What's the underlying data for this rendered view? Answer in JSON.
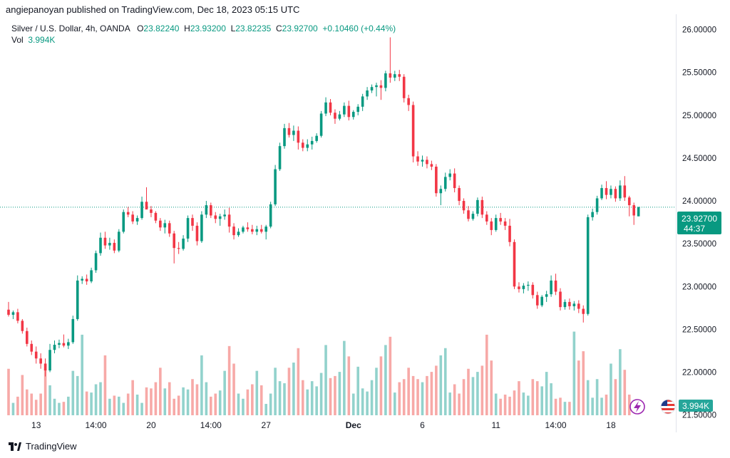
{
  "header": {
    "publish_line": "angiepanoyan published on TradingView.com, Dec 18, 2023 05:15 UTC"
  },
  "legend": {
    "symbol": "Silver / U.S. Dollar, 4h, OANDA",
    "open_label": "O",
    "open": "23.82240",
    "high_label": "H",
    "high": "23.93200",
    "low_label": "L",
    "low": "23.82235",
    "close_label": "C",
    "close": "23.92700",
    "change": "+0.10460 (+0.44%)",
    "vol_label": "Vol",
    "vol": "3.994K"
  },
  "price_tag": {
    "price": "23.92700",
    "countdown": "44:37"
  },
  "volume_tag": "3.994K",
  "footer": {
    "brand": "TradingView"
  },
  "colors": {
    "up": "#089981",
    "down": "#f23645",
    "up_vol": "#92d2cc",
    "down_vol": "#f7a9a7",
    "price_line": "#089981"
  },
  "chart_data": {
    "type": "candlestick",
    "y_ticks": [
      "26.00000",
      "25.50000",
      "25.00000",
      "24.50000",
      "24.00000",
      "23.50000",
      "23.00000",
      "22.50000",
      "22.00000",
      "21.50000"
    ],
    "ylim": [
      21.48,
      26.18
    ],
    "x_ticks": [
      {
        "label": "13",
        "i": 6,
        "bold": false
      },
      {
        "label": "14:00",
        "i": 19,
        "bold": false
      },
      {
        "label": "20",
        "i": 31,
        "bold": false
      },
      {
        "label": "14:00",
        "i": 44,
        "bold": false
      },
      {
        "label": "27",
        "i": 56,
        "bold": false
      },
      {
        "label": "Dec",
        "i": 75,
        "bold": true
      },
      {
        "label": "6",
        "i": 90,
        "bold": false
      },
      {
        "label": "11",
        "i": 106,
        "bold": false
      },
      {
        "label": "14:00",
        "i": 119,
        "bold": false
      },
      {
        "label": "18",
        "i": 131,
        "bold": false
      }
    ],
    "last_price": 23.927,
    "candles": [
      [
        22.73,
        22.82,
        22.65,
        22.67
      ],
      [
        22.67,
        22.72,
        22.62,
        22.7
      ],
      [
        22.7,
        22.74,
        22.57,
        22.6
      ],
      [
        22.6,
        22.62,
        22.45,
        22.48
      ],
      [
        22.48,
        22.52,
        22.3,
        22.33
      ],
      [
        22.33,
        22.37,
        22.2,
        22.24
      ],
      [
        22.24,
        22.3,
        22.1,
        22.16
      ],
      [
        22.16,
        22.22,
        22.04,
        22.1
      ],
      [
        22.1,
        22.16,
        21.95,
        22.02
      ],
      [
        22.02,
        22.33,
        22.0,
        22.26
      ],
      [
        22.26,
        22.37,
        22.22,
        22.32
      ],
      [
        22.32,
        22.38,
        22.28,
        22.34
      ],
      [
        22.34,
        22.44,
        22.29,
        22.31
      ],
      [
        22.31,
        22.39,
        22.27,
        22.35
      ],
      [
        22.35,
        22.66,
        22.33,
        22.62
      ],
      [
        22.62,
        23.13,
        22.6,
        23.07
      ],
      [
        23.07,
        23.12,
        23.03,
        23.09
      ],
      [
        23.09,
        23.14,
        23.02,
        23.06
      ],
      [
        23.06,
        23.22,
        23.04,
        23.19
      ],
      [
        23.19,
        23.42,
        23.16,
        23.39
      ],
      [
        23.39,
        23.63,
        23.36,
        23.57
      ],
      [
        23.57,
        23.64,
        23.44,
        23.48
      ],
      [
        23.48,
        23.57,
        23.43,
        23.51
      ],
      [
        23.51,
        23.55,
        23.39,
        23.42
      ],
      [
        23.42,
        23.67,
        23.4,
        23.64
      ],
      [
        23.64,
        23.9,
        23.62,
        23.87
      ],
      [
        23.87,
        23.93,
        23.81,
        23.84
      ],
      [
        23.84,
        23.88,
        23.73,
        23.76
      ],
      [
        23.76,
        23.83,
        23.72,
        23.8
      ],
      [
        23.8,
        24.05,
        23.78,
        23.99
      ],
      [
        23.99,
        24.16,
        23.92,
        23.9
      ],
      [
        23.9,
        23.94,
        23.81,
        23.86
      ],
      [
        23.86,
        23.88,
        23.74,
        23.77
      ],
      [
        23.77,
        23.8,
        23.65,
        23.69
      ],
      [
        23.69,
        23.78,
        23.62,
        23.74
      ],
      [
        23.74,
        23.77,
        23.58,
        23.62
      ],
      [
        23.62,
        23.65,
        23.27,
        23.45
      ],
      [
        23.45,
        23.52,
        23.38,
        23.44
      ],
      [
        23.44,
        23.6,
        23.42,
        23.56
      ],
      [
        23.56,
        23.83,
        23.52,
        23.8
      ],
      [
        23.8,
        23.84,
        23.65,
        23.71
      ],
      [
        23.71,
        23.75,
        23.48,
        23.53
      ],
      [
        23.53,
        23.88,
        23.51,
        23.84
      ],
      [
        23.84,
        24.0,
        23.8,
        23.95
      ],
      [
        23.95,
        23.98,
        23.8,
        23.83
      ],
      [
        23.83,
        23.87,
        23.74,
        23.79
      ],
      [
        23.79,
        23.85,
        23.71,
        23.82
      ],
      [
        23.82,
        23.9,
        23.78,
        23.84
      ],
      [
        23.84,
        23.92,
        23.63,
        23.7
      ],
      [
        23.7,
        23.74,
        23.55,
        23.6
      ],
      [
        23.6,
        23.68,
        23.58,
        23.64
      ],
      [
        23.64,
        23.71,
        23.62,
        23.69
      ],
      [
        23.69,
        23.75,
        23.64,
        23.67
      ],
      [
        23.67,
        23.72,
        23.61,
        23.64
      ],
      [
        23.64,
        23.71,
        23.6,
        23.67
      ],
      [
        23.67,
        23.72,
        23.62,
        23.64
      ],
      [
        23.64,
        23.72,
        23.55,
        23.7
      ],
      [
        23.7,
        23.99,
        23.68,
        23.96
      ],
      [
        23.96,
        24.42,
        23.94,
        24.37
      ],
      [
        24.37,
        24.68,
        24.35,
        24.64
      ],
      [
        24.64,
        24.9,
        24.61,
        24.85
      ],
      [
        24.85,
        24.91,
        24.74,
        24.77
      ],
      [
        24.77,
        24.88,
        24.7,
        24.82
      ],
      [
        24.82,
        24.87,
        24.6,
        24.68
      ],
      [
        24.68,
        24.72,
        24.58,
        24.62
      ],
      [
        24.62,
        24.72,
        24.58,
        24.66
      ],
      [
        24.66,
        24.75,
        24.6,
        24.7
      ],
      [
        24.7,
        24.79,
        24.68,
        24.76
      ],
      [
        24.76,
        25.05,
        24.74,
        25.02
      ],
      [
        25.02,
        25.21,
        24.99,
        25.15
      ],
      [
        25.15,
        25.19,
        25.0,
        25.03
      ],
      [
        25.03,
        25.07,
        24.9,
        24.96
      ],
      [
        24.96,
        25.05,
        24.94,
        25.01
      ],
      [
        25.01,
        25.15,
        24.98,
        25.11
      ],
      [
        25.11,
        25.17,
        24.94,
        24.98
      ],
      [
        24.98,
        25.06,
        24.95,
        25.04
      ],
      [
        25.04,
        25.13,
        25.0,
        25.1
      ],
      [
        25.1,
        25.25,
        25.05,
        25.22
      ],
      [
        25.22,
        25.33,
        25.18,
        25.29
      ],
      [
        25.29,
        25.36,
        25.26,
        25.33
      ],
      [
        25.33,
        25.38,
        25.22,
        25.35
      ],
      [
        25.35,
        25.41,
        25.18,
        25.32
      ],
      [
        25.32,
        25.52,
        25.28,
        25.49
      ],
      [
        25.49,
        25.91,
        25.38,
        25.44
      ],
      [
        25.44,
        25.52,
        25.4,
        25.48
      ],
      [
        25.48,
        25.53,
        25.4,
        25.45
      ],
      [
        25.45,
        25.48,
        25.15,
        25.2
      ],
      [
        25.2,
        25.24,
        25.05,
        25.12
      ],
      [
        25.12,
        25.16,
        24.45,
        24.52
      ],
      [
        24.52,
        24.58,
        24.41,
        24.46
      ],
      [
        24.46,
        24.53,
        24.4,
        24.48
      ],
      [
        24.48,
        24.52,
        24.38,
        24.43
      ],
      [
        24.43,
        24.47,
        24.36,
        24.4
      ],
      [
        24.4,
        24.43,
        24.05,
        24.09
      ],
      [
        24.09,
        24.18,
        23.95,
        24.14
      ],
      [
        24.14,
        24.33,
        24.11,
        24.28
      ],
      [
        24.28,
        24.37,
        24.24,
        24.32
      ],
      [
        24.32,
        24.38,
        24.1,
        24.15
      ],
      [
        24.15,
        24.18,
        23.95,
        24.0
      ],
      [
        24.0,
        24.03,
        23.85,
        23.89
      ],
      [
        23.89,
        23.94,
        23.76,
        23.79
      ],
      [
        23.79,
        23.88,
        23.77,
        23.85
      ],
      [
        23.85,
        24.04,
        23.82,
        24.01
      ],
      [
        24.01,
        24.05,
        23.8,
        23.84
      ],
      [
        23.84,
        23.88,
        23.72,
        23.76
      ],
      [
        23.76,
        23.8,
        23.6,
        23.66
      ],
      [
        23.66,
        23.84,
        23.64,
        23.8
      ],
      [
        23.8,
        23.86,
        23.72,
        23.76
      ],
      [
        23.76,
        23.8,
        23.66,
        23.71
      ],
      [
        23.71,
        23.79,
        23.47,
        23.52
      ],
      [
        23.52,
        23.55,
        22.97,
        23.0
      ],
      [
        23.0,
        23.05,
        22.93,
        22.97
      ],
      [
        22.97,
        23.04,
        22.92,
        23.01
      ],
      [
        23.01,
        23.06,
        22.95,
        23.02
      ],
      [
        23.02,
        23.05,
        22.86,
        22.9
      ],
      [
        22.9,
        22.94,
        22.74,
        22.78
      ],
      [
        22.78,
        22.9,
        22.76,
        22.88
      ],
      [
        22.88,
        22.95,
        22.82,
        22.91
      ],
      [
        22.91,
        23.13,
        22.88,
        23.07
      ],
      [
        23.07,
        23.15,
        22.9,
        22.94
      ],
      [
        22.94,
        22.98,
        22.72,
        22.76
      ],
      [
        22.76,
        22.85,
        22.73,
        22.82
      ],
      [
        22.82,
        22.86,
        22.73,
        22.77
      ],
      [
        22.77,
        22.83,
        22.72,
        22.8
      ],
      [
        22.8,
        22.84,
        22.69,
        22.74
      ],
      [
        22.74,
        22.78,
        22.58,
        22.68
      ],
      [
        22.68,
        23.84,
        22.66,
        23.81
      ],
      [
        23.81,
        23.91,
        23.77,
        23.87
      ],
      [
        23.87,
        24.06,
        23.84,
        24.03
      ],
      [
        24.03,
        24.19,
        24.01,
        24.15
      ],
      [
        24.15,
        24.23,
        24.02,
        24.07
      ],
      [
        24.07,
        24.18,
        24.03,
        24.14
      ],
      [
        24.14,
        24.17,
        23.99,
        24.03
      ],
      [
        24.03,
        24.24,
        24.0,
        24.18
      ],
      [
        24.18,
        24.29,
        24.0,
        24.04
      ],
      [
        24.04,
        24.06,
        23.82,
        23.95
      ],
      [
        23.95,
        23.98,
        23.72,
        23.83
      ],
      [
        23.82,
        23.93,
        23.82,
        23.93
      ]
    ],
    "volume": [
      0.45,
      0.12,
      0.18,
      0.39,
      0.25,
      0.21,
      0.15,
      0.21,
      0.45,
      0.29,
      0.16,
      0.12,
      0.13,
      0.18,
      0.43,
      0.38,
      0.78,
      0.23,
      0.22,
      0.3,
      0.32,
      0.58,
      0.16,
      0.19,
      0.18,
      0.12,
      0.21,
      0.34,
      0.2,
      0.12,
      0.27,
      0.26,
      0.32,
      0.46,
      0.26,
      0.32,
      0.16,
      0.19,
      0.27,
      0.25,
      0.35,
      0.3,
      0.58,
      0.32,
      0.18,
      0.21,
      0.24,
      0.43,
      0.67,
      0.5,
      0.21,
      0.16,
      0.25,
      0.3,
      0.43,
      0.29,
      0.11,
      0.21,
      0.46,
      0.33,
      0.31,
      0.46,
      0.51,
      0.65,
      0.34,
      0.25,
      0.33,
      0.28,
      0.41,
      0.68,
      0.36,
      0.38,
      0.42,
      0.72,
      0.57,
      0.21,
      0.47,
      0.26,
      0.23,
      0.34,
      0.46,
      0.57,
      0.68,
      0.76,
      0.22,
      0.32,
      0.35,
      0.46,
      0.38,
      0.35,
      0.32,
      0.38,
      0.42,
      0.48,
      0.58,
      0.65,
      0.22,
      0.3,
      0.21,
      0.35,
      0.45,
      0.37,
      0.42,
      0.48,
      0.78,
      0.53,
      0.21,
      0.16,
      0.2,
      0.18,
      0.24,
      0.33,
      0.22,
      0.19,
      0.35,
      0.33,
      0.28,
      0.42,
      0.31,
      0.16,
      0.17,
      0.13,
      0.13,
      0.81,
      0.53,
      0.62,
      0.34,
      0.17,
      0.35,
      0.17,
      0.2,
      0.5,
      0.35,
      0.64,
      0.44,
      0.2
    ]
  }
}
